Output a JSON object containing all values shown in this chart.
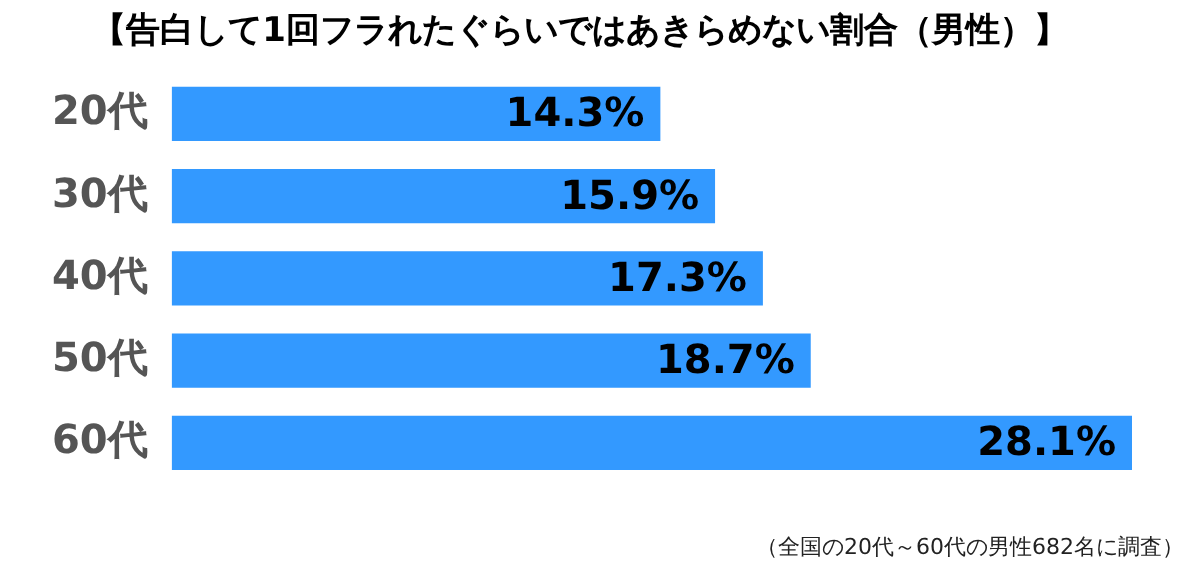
{
  "chart_data": {
    "type": "bar",
    "orientation": "horizontal",
    "title": "【告白して1回フラれたぐらいではあきらめない割合（男性）】",
    "categories": [
      "20代",
      "30代",
      "40代",
      "50代",
      "60代"
    ],
    "values": [
      14.3,
      15.9,
      17.3,
      18.7,
      28.1
    ],
    "value_labels": [
      "14.3%",
      "15.9%",
      "17.3%",
      "18.7%",
      "28.1%"
    ],
    "color": "#3399ff",
    "grid": false,
    "legend": false,
    "annotations": [
      "（全国の20代～60代の男性682名に調査）"
    ]
  }
}
